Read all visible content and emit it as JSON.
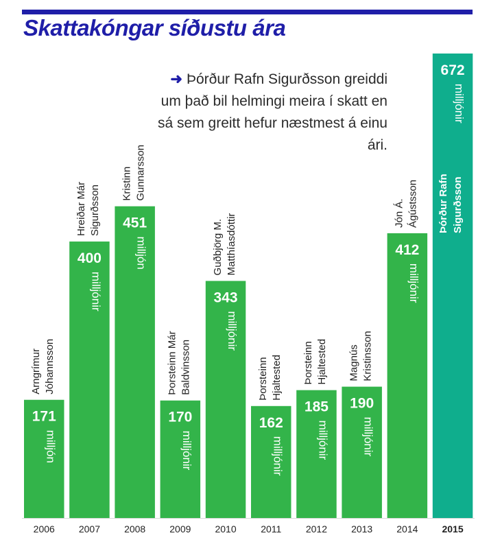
{
  "title": "Skattakóngar síðustu ára",
  "annotation": {
    "arrow": "➜",
    "text": "Þórður Rafn Sigurðsson greiddi um það bil helmingi meira í skatt en sá sem greitt hefur næstmest á einu ári."
  },
  "colors": {
    "brand_blue": "#1f1ea8",
    "bar_green": "#33b44a",
    "highlight_teal": "#0fae8d",
    "background": "#ffffff",
    "text": "#222222"
  },
  "chart_data": {
    "type": "bar",
    "categories": [
      "2006",
      "2007",
      "2008",
      "2009",
      "2010",
      "2011",
      "2012",
      "2013",
      "2014",
      "2015"
    ],
    "values": [
      171,
      400,
      451,
      170,
      343,
      162,
      185,
      190,
      412,
      672
    ],
    "value_labels": [
      "171",
      "400",
      "451",
      "170",
      "343",
      "162",
      "185",
      "190",
      "412",
      "672"
    ],
    "units": [
      "milljón",
      "milljónir",
      "milljón",
      "milljónir",
      "milljónir",
      "milljónir",
      "milljónir",
      "milljónir",
      "milljónir",
      "milljónir"
    ],
    "names": [
      [
        "Arngrímur",
        "Jóhannsson"
      ],
      [
        "Hreiðar Már",
        "Sigurðsson"
      ],
      [
        "Kristinn",
        "Gunnarsson"
      ],
      [
        "Þorsteinn Már",
        "Baldvinsson"
      ],
      [
        "Guðbjörg M.",
        "Matthíasdóttir"
      ],
      [
        "Þorsteinn",
        "Hjaltested"
      ],
      [
        "Þorsteinn",
        "Hjaltested"
      ],
      [
        "Magnús",
        "Kristinsson"
      ],
      [
        "Jón Á.",
        "Ágústsson"
      ],
      [
        "Þórður Rafn",
        "Sigurðsson"
      ]
    ],
    "highlight_index": 9,
    "ylim": [
      0,
      672
    ],
    "grid": false,
    "legend": "none"
  }
}
